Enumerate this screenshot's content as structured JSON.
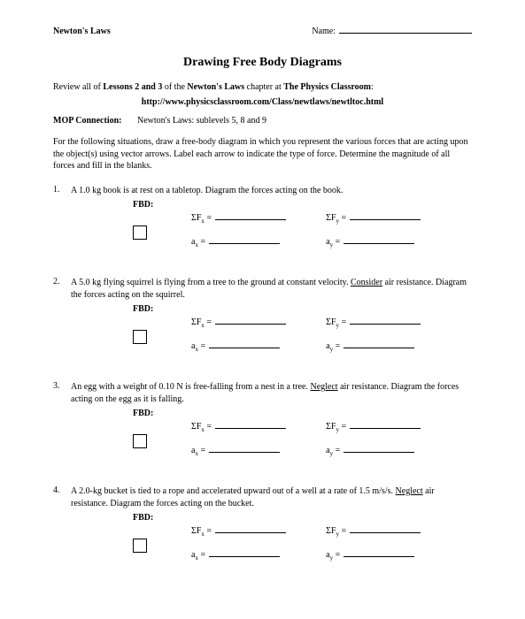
{
  "header": {
    "subject": "Newton's Laws",
    "name_label": "Name:"
  },
  "title": "Drawing Free Body Diagrams",
  "review": {
    "prefix": "Review all of ",
    "lessons": "Lessons 2 and 3",
    "middle": " of the ",
    "topic": "Newton's Laws",
    "suffix": " chapter at ",
    "site": "The Physics Classroom",
    "colon": ":"
  },
  "url": "http://www.physicsclassroom.com/Class/newtlaws/newtltoc.html",
  "mop": {
    "label": "MOP Connection:",
    "text": "Newton's Laws: sublevels 5, 8 and 9"
  },
  "instructions": "For the following situations, draw a free-body diagram in which you represent the various forces that are acting upon the object(s) using vector arrows.  Label each arrow to indicate the type of force.  Determine the magnitude of all forces and fill in the blanks.",
  "fbd_label": "FBD:",
  "eq": {
    "sigma_fx": "ΣF",
    "sigma_fy": "ΣF",
    "ax": "a",
    "ay": "a",
    "x": "x",
    "y": "y",
    "eq": " ="
  },
  "problems": [
    {
      "num": "1.",
      "text_parts": [
        {
          "t": "A 1.0 kg book is at rest on a tabletop.  Diagram the forces acting on the book.",
          "style": ""
        }
      ]
    },
    {
      "num": "2.",
      "text_parts": [
        {
          "t": "A 5.0 kg flying squirrel is flying from a tree to the ground at constant velocity.  ",
          "style": ""
        },
        {
          "t": "Consider",
          "style": "underline"
        },
        {
          "t": " air resistance.  Diagram the forces acting on the squirrel.",
          "style": ""
        }
      ]
    },
    {
      "num": "3.",
      "text_parts": [
        {
          "t": "An egg with a weight of 0.10 N is free-falling from a nest in a tree.  ",
          "style": ""
        },
        {
          "t": "Neglect",
          "style": "underline"
        },
        {
          "t": " air resistance.  Diagram the forces acting on the egg as it is falling.",
          "style": ""
        }
      ]
    },
    {
      "num": "4.",
      "text_parts": [
        {
          "t": "A 2.0-kg bucket is tied to a rope and accelerated upward out of a well at a rate of 1.5 m/s/s.  ",
          "style": ""
        },
        {
          "t": "Neglect",
          "style": "underline"
        },
        {
          "t": " air resistance.  Diagram the forces acting on the bucket.",
          "style": ""
        }
      ]
    }
  ]
}
